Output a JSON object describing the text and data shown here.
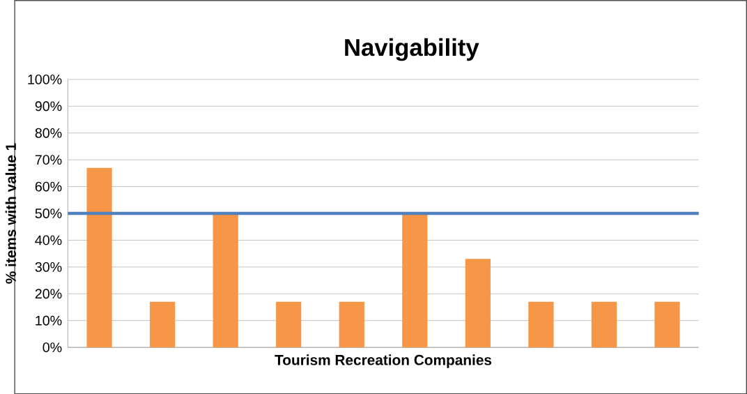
{
  "chart_data": {
    "type": "bar",
    "title": "Navigability",
    "xlabel": "Tourism Recreation Companies",
    "ylabel": "% items with value 1",
    "categories": [
      null,
      null,
      null,
      null,
      null,
      null,
      null,
      null,
      null,
      null
    ],
    "values": [
      67,
      17,
      50,
      17,
      17,
      50,
      33,
      17,
      17,
      17
    ],
    "color": "#f79646",
    "ylim": [
      0,
      100
    ],
    "yticks": [
      {
        "value": 0,
        "label": "0%"
      },
      {
        "value": 10,
        "label": "10%"
      },
      {
        "value": 20,
        "label": "20%"
      },
      {
        "value": 30,
        "label": "30%"
      },
      {
        "value": 40,
        "label": "40%"
      },
      {
        "value": 50,
        "label": "50%"
      },
      {
        "value": 60,
        "label": "60%"
      },
      {
        "value": 70,
        "label": "70%"
      },
      {
        "value": 80,
        "label": "80%"
      },
      {
        "value": 90,
        "label": "90%"
      },
      {
        "value": 100,
        "label": "100%"
      }
    ],
    "ref_lines": [
      {
        "axis": "y",
        "value": 50,
        "color": "#4f81bd"
      }
    ],
    "grid": "y"
  }
}
